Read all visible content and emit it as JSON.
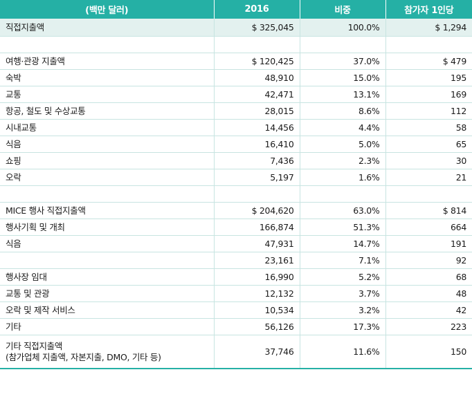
{
  "header": {
    "col0": "(백만 달러)",
    "col1": "2016",
    "col2": "비중",
    "col3": "참가자 1인당"
  },
  "rows": [
    {
      "type": "total",
      "label": "직접지출액",
      "value": "$ 325,045",
      "share": "100.0%",
      "per": "$ 1,294"
    },
    {
      "type": "blank",
      "label": "",
      "value": "",
      "share": "",
      "per": ""
    },
    {
      "type": "row",
      "label": "여행·관광 지출액",
      "value": "$ 120,425",
      "share": "37.0%",
      "per": "$ 479"
    },
    {
      "type": "row",
      "label": "숙박",
      "value": "48,910",
      "share": "15.0%",
      "per": "195"
    },
    {
      "type": "row",
      "label": "교통",
      "value": "42,471",
      "share": "13.1%",
      "per": "169"
    },
    {
      "type": "row",
      "label": "항공, 철도 및 수상교통",
      "value": "28,015",
      "share": "8.6%",
      "per": "112"
    },
    {
      "type": "row",
      "label": "시내교통",
      "value": "14,456",
      "share": "4.4%",
      "per": "58"
    },
    {
      "type": "row",
      "label": "식음",
      "value": "16,410",
      "share": "5.0%",
      "per": "65"
    },
    {
      "type": "row",
      "label": "쇼핑",
      "value": "7,436",
      "share": "2.3%",
      "per": "30"
    },
    {
      "type": "row",
      "label": "오락",
      "value": "5,197",
      "share": "1.6%",
      "per": "21"
    },
    {
      "type": "blank",
      "label": "",
      "value": "",
      "share": "",
      "per": ""
    },
    {
      "type": "row",
      "label": "MICE 행사 직접지출액",
      "value": "$ 204,620",
      "share": "63.0%",
      "per": "$ 814"
    },
    {
      "type": "row",
      "label": "행사기획 및 개최",
      "value": "166,874",
      "share": "51.3%",
      "per": "664"
    },
    {
      "type": "row",
      "label": "식음",
      "value": "47,931",
      "share": "14.7%",
      "per": "191"
    },
    {
      "type": "row",
      "label": "",
      "value": "23,161",
      "share": "7.1%",
      "per": "92"
    },
    {
      "type": "row",
      "label": "행사장 임대",
      "value": "16,990",
      "share": "5.2%",
      "per": "68"
    },
    {
      "type": "row",
      "label": "교통 및 관광",
      "value": "12,132",
      "share": "3.7%",
      "per": "48"
    },
    {
      "type": "row",
      "label": "오락 및 제작 서비스",
      "value": "10,534",
      "share": "3.2%",
      "per": "42"
    },
    {
      "type": "row",
      "label": "기타",
      "value": "56,126",
      "share": "17.3%",
      "per": "223"
    },
    {
      "type": "tall",
      "label": "기타 직접지출액",
      "label2": "(참가업체 지출액, 자본지출, DMO, 기타 등)",
      "value": "37,746",
      "share": "11.6%",
      "per": "150"
    }
  ]
}
